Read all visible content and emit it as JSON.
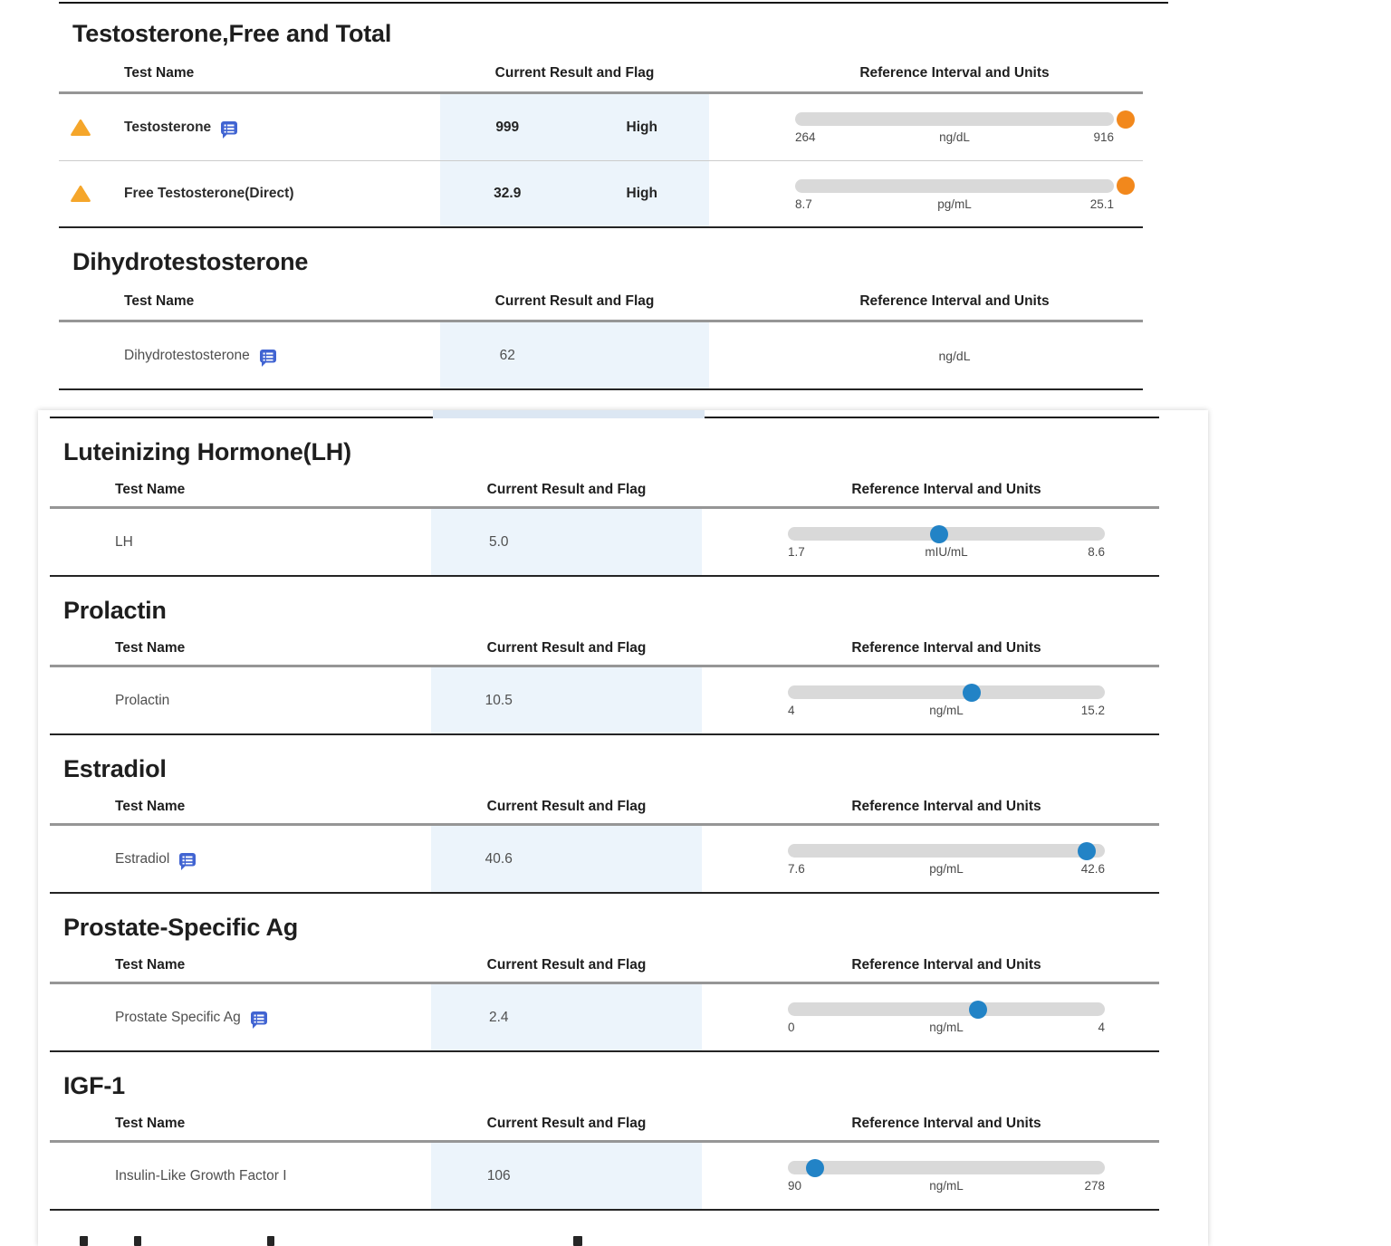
{
  "palette": {
    "result_column_highlight": "#ECF4FB",
    "bar_track": "#D9D9D9",
    "marker_normal": "#2283C6",
    "marker_out_of_range": "#F2881C",
    "warning_triangle": "#F5A62B",
    "comment_icon": "#4164D2"
  },
  "columns": {
    "test_name": "Test Name",
    "result": "Current Result and Flag",
    "reference": "Reference Interval and Units"
  },
  "sections": [
    {
      "title": "Testosterone,Free and Total",
      "rows": [
        {
          "name": "Testosterone",
          "warning": true,
          "comment": true,
          "value": "999",
          "flag": "High",
          "ref": {
            "min_label": "264",
            "unit": "ng/dL",
            "max_label": "916",
            "min": 264,
            "max": 916,
            "value": 999,
            "out_of_range_high": true,
            "marker_color": "#F2881C"
          }
        },
        {
          "name": "Free Testosterone(Direct)",
          "warning": true,
          "comment": false,
          "value": "32.9",
          "flag": "High",
          "ref": {
            "min_label": "8.7",
            "unit": "pg/mL",
            "max_label": "25.1",
            "min": 8.7,
            "max": 25.1,
            "value": 32.9,
            "out_of_range_high": true,
            "marker_color": "#F2881C"
          }
        }
      ]
    },
    {
      "title": "Dihydrotestosterone",
      "rows": [
        {
          "name": "Dihydrotestosterone",
          "warning": false,
          "comment": true,
          "value": "62",
          "flag": "",
          "ref": {
            "unit": "ng/dL",
            "no_bar": true
          }
        }
      ]
    },
    {
      "title": "Luteinizing Hormone(LH)",
      "rows": [
        {
          "name": "LH",
          "warning": false,
          "comment": false,
          "value": "5.0",
          "flag": "",
          "ref": {
            "min_label": "1.7",
            "unit": "mIU/mL",
            "max_label": "8.6",
            "min": 1.7,
            "max": 8.6,
            "value": 5.0,
            "marker_color": "#2283C6"
          }
        }
      ]
    },
    {
      "title": "Prolactin",
      "rows": [
        {
          "name": "Prolactin",
          "warning": false,
          "comment": false,
          "value": "10.5",
          "flag": "",
          "ref": {
            "min_label": "4",
            "unit": "ng/mL",
            "max_label": "15.2",
            "min": 4,
            "max": 15.2,
            "value": 10.5,
            "marker_color": "#2283C6"
          }
        }
      ]
    },
    {
      "title": "Estradiol",
      "rows": [
        {
          "name": "Estradiol",
          "warning": false,
          "comment": true,
          "value": "40.6",
          "flag": "",
          "ref": {
            "min_label": "7.6",
            "unit": "pg/mL",
            "max_label": "42.6",
            "min": 7.6,
            "max": 42.6,
            "value": 40.6,
            "marker_color": "#2283C6"
          }
        }
      ]
    },
    {
      "title": "Prostate-Specific Ag",
      "rows": [
        {
          "name": "Prostate Specific Ag",
          "warning": false,
          "comment": true,
          "value": "2.4",
          "flag": "",
          "ref": {
            "min_label": "0",
            "unit": "ng/mL",
            "max_label": "4",
            "min": 0,
            "max": 4,
            "value": 2.4,
            "marker_color": "#2283C6"
          }
        }
      ]
    },
    {
      "title": "IGF-1",
      "rows": [
        {
          "name": "Insulin-Like Growth Factor I",
          "warning": false,
          "comment": false,
          "value": "106",
          "flag": "",
          "ref": {
            "min_label": "90",
            "unit": "ng/mL",
            "max_label": "278",
            "min": 90,
            "max": 278,
            "value": 106,
            "marker_color": "#2283C6"
          }
        }
      ]
    }
  ]
}
